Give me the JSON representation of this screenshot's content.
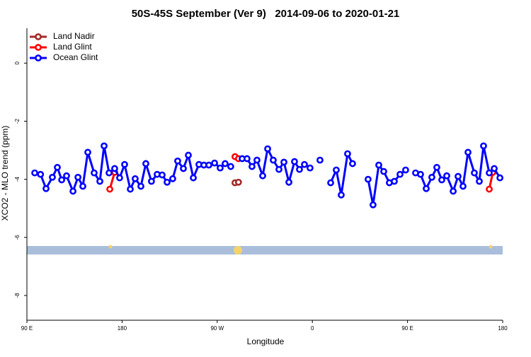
{
  "chart_data": {
    "type": "line",
    "title": "50S-45S September (Ver 9)   2014-09-06 to 2020-01-21",
    "x_label": "Longitude",
    "y_label": "XCO2 - MLO trend (ppm)",
    "xlim": [
      90,
      540
    ],
    "xticks": [
      {
        "value": 90,
        "label": "90 E"
      },
      180,
      {
        "value": 270,
        "label": "90 W"
      },
      {
        "value": 360,
        "label": "0"
      },
      {
        "value": 450,
        "label": "90 E"
      },
      {
        "value": 540,
        "label": "180"
      }
    ],
    "ylim": [
      -8.78,
      1.2
    ],
    "yticks": [
      0,
      -2,
      -4,
      -6,
      -8
    ],
    "legend": "top-left",
    "series": [
      {
        "name": "Land Nadir",
        "color": "#a52a2a",
        "x": [
          286.8,
          290.1
        ],
        "values": [
          -4.12,
          -4.1
        ]
      },
      {
        "name": "Land Glint",
        "color": "#ff0000",
        "x": [
          168.4,
          173,
          null,
          286.8,
          290.1,
          null,
          527.3,
          530.7
        ],
        "values": [
          -4.34,
          -3.76,
          null,
          -3.22,
          -3.29,
          null,
          -4.34,
          -3.76
        ]
      },
      {
        "name": "Ocean Glint",
        "color": "#0000ff",
        "x": [
          97.4,
          102.9,
          108.1,
          114.1,
          118.8,
          122.9,
          127.5,
          133.6,
          138.3,
          142.9,
          147.6,
          153.6,
          159,
          163,
          167.7,
          173,
          177.7,
          182.4,
          187.8,
          192.4,
          197.8,
          202.5,
          207.8,
          213.2,
          217.9,
          222.6,
          227.9,
          232.6,
          238,
          242.7,
          247.4,
          252.7,
          257.4,
          262.1,
          267.5,
          272.8,
          277.5,
          282.8,
          null,
          293.6,
          298.2,
          302.9,
          307.6,
          313,
          317.7,
          323,
          328.4,
          333.1,
          337.8,
          343.1,
          347.8,
          352.5,
          357.8,
          null,
          367.2,
          null,
          377.3,
          382.6,
          387.3,
          393.3,
          398,
          null,
          412.7,
          417.4,
          422.8,
          427.5,
          432.8,
          437.5,
          442.9,
          448.2,
          null,
          457.6,
          462.3,
          467.7,
          473,
          477.7,
          482.4,
          487.1,
          493.2,
          497.8,
          502.5,
          507.2,
          513.2,
          517.9,
          521.9,
          527.3,
          532,
          537.4
        ],
        "values": [
          -3.78,
          -3.83,
          -4.32,
          -3.93,
          -3.59,
          -4.02,
          -3.88,
          -4.41,
          -3.93,
          -4.24,
          -3.07,
          -3.78,
          -4.07,
          -2.85,
          -3.78,
          -3.63,
          -3.95,
          -3.49,
          -4.34,
          -3.98,
          -4.24,
          -3.46,
          -4.07,
          -3.83,
          -3.85,
          -4.1,
          -3.98,
          -3.37,
          -3.63,
          -3.17,
          -3.95,
          -3.49,
          -3.51,
          -3.51,
          -3.44,
          -3.61,
          -3.46,
          -3.56,
          null,
          -3.29,
          -3.29,
          -3.56,
          -3.34,
          -3.88,
          -2.95,
          -3.34,
          -3.66,
          -3.41,
          -4.1,
          -3.39,
          -3.66,
          -3.49,
          -3.61,
          null,
          -3.34,
          null,
          -4.12,
          -3.68,
          -4.54,
          -3.12,
          -3.46,
          null,
          -4.0,
          -4.88,
          -3.51,
          -3.73,
          -4.12,
          -4.07,
          -3.83,
          -3.68,
          null,
          -3.78,
          -3.83,
          -4.32,
          -3.93,
          -3.59,
          -4.02,
          -3.88,
          -4.41,
          -3.9,
          -4.24,
          -3.07,
          -3.78,
          -4.07,
          -2.85,
          -3.78,
          -3.63,
          -3.95
        ]
      }
    ]
  }
}
